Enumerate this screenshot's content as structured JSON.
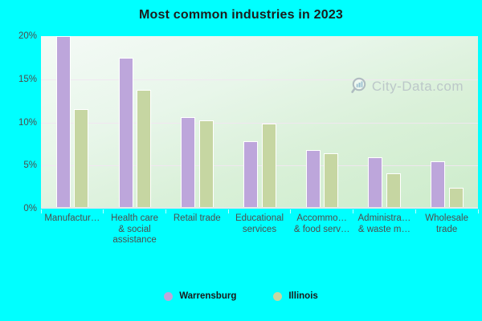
{
  "title": "Most common industries in 2023",
  "watermark": {
    "text": "City-Data.com",
    "icon": "magnifier-bars-icon"
  },
  "colors": {
    "background": "#00ffff",
    "warrensburg": "#bda6db",
    "illinois": "#c6d6a2",
    "bar_border": "#ffffff",
    "gridline": "#f2e6f2",
    "axis_text": "#4d4d4d",
    "title_text": "#1c1c1c"
  },
  "chart_data": {
    "type": "bar",
    "title": "Most common industries in 2023",
    "categories": [
      "Manufactur…",
      "Health care\n& social\nassistance",
      "Retail trade",
      "Educational\nservices",
      "Accommo…\n& food serv…",
      "Administra…\n& waste m…",
      "Wholesale\ntrade"
    ],
    "series": [
      {
        "name": "Warrensburg",
        "color": "#bda6db",
        "values": [
          20.0,
          17.5,
          10.5,
          7.7,
          6.7,
          5.8,
          5.4
        ]
      },
      {
        "name": "Illinois",
        "color": "#c6d6a2",
        "values": [
          11.5,
          13.7,
          10.1,
          9.8,
          6.3,
          3.9,
          2.3
        ]
      }
    ],
    "ylabel": "",
    "xlabel": "",
    "yticks": [
      "0%",
      "5%",
      "10%",
      "15%",
      "20%"
    ],
    "ylim": [
      0,
      20
    ],
    "grid": "horizontal",
    "legend_position": "bottom"
  }
}
